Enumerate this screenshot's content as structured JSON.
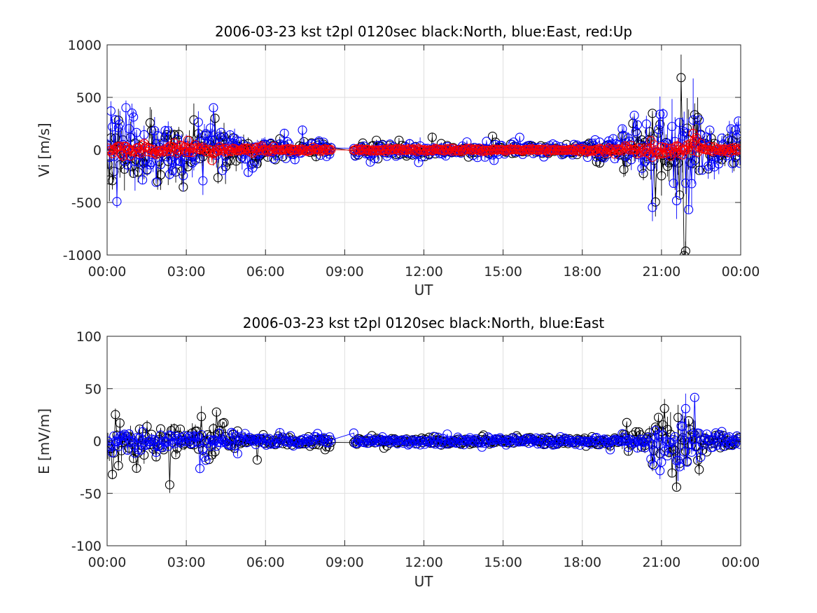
{
  "chart_data": [
    {
      "type": "scatter",
      "title": "2006-03-23 kst t2pl 0120sec black:North, blue:East, red:Up",
      "xlabel": "UT",
      "ylabel": "Vi [m/s]",
      "xlim_hours": [
        0,
        24
      ],
      "ylim": [
        -1000,
        1000
      ],
      "x_ticks": [
        "00:00",
        "03:00",
        "06:00",
        "09:00",
        "12:00",
        "15:00",
        "18:00",
        "21:00",
        "00:00"
      ],
      "y_ticks": [
        "1000",
        "500",
        "0",
        "-500",
        "-1000"
      ],
      "y_tick_values": [
        1000,
        500,
        0,
        -500,
        -1000
      ],
      "grid": true,
      "data_gap_hours": [
        8.5,
        9.3
      ],
      "series": [
        {
          "color": "#000000",
          "marker": "circle",
          "segments": [
            [
              0,
              1.5,
              260
            ],
            [
              1.5,
              3,
              230
            ],
            [
              3,
              4.5,
              200
            ],
            [
              4.5,
              6,
              120
            ],
            [
              6,
              8.5,
              60
            ],
            [
              9.3,
              12,
              55
            ],
            [
              12,
              18,
              45
            ],
            [
              18,
              19.5,
              70
            ],
            [
              19.5,
              20.5,
              180
            ],
            [
              20.5,
              21.5,
              320
            ],
            [
              21.5,
              22.5,
              380
            ],
            [
              22.5,
              24,
              150
            ]
          ]
        },
        {
          "color": "#0000ff",
          "marker": "circle",
          "segments": [
            [
              0,
              1.5,
              300
            ],
            [
              1.5,
              3,
              260
            ],
            [
              3,
              4.5,
              220
            ],
            [
              4.5,
              6,
              140
            ],
            [
              6,
              8.5,
              75
            ],
            [
              9.3,
              12,
              70
            ],
            [
              12,
              18,
              60
            ],
            [
              18,
              19.5,
              85
            ],
            [
              19.5,
              20.5,
              220
            ],
            [
              20.5,
              21.5,
              380
            ],
            [
              21.5,
              22.5,
              400
            ],
            [
              22.5,
              24,
              170
            ]
          ]
        },
        {
          "color": "#ff0000",
          "marker": "circle",
          "segments": [
            [
              0,
              1.5,
              45
            ],
            [
              1.5,
              3,
              40
            ],
            [
              3,
              4.5,
              35
            ],
            [
              4.5,
              6,
              25
            ],
            [
              6,
              8.5,
              15
            ],
            [
              9.3,
              12,
              12
            ],
            [
              12,
              18,
              10
            ],
            [
              18,
              19.5,
              15
            ],
            [
              19.5,
              20.5,
              35
            ],
            [
              20.5,
              21.5,
              60
            ],
            [
              21.5,
              22.5,
              90
            ],
            [
              22.5,
              24,
              25
            ]
          ]
        }
      ]
    },
    {
      "type": "scatter",
      "title": "2006-03-23 kst t2pl 0120sec black:North, blue:East",
      "xlabel": "UT",
      "ylabel": "E [mV/m]",
      "xlim_hours": [
        0,
        24
      ],
      "ylim": [
        -100,
        100
      ],
      "x_ticks": [
        "00:00",
        "03:00",
        "06:00",
        "09:00",
        "12:00",
        "15:00",
        "18:00",
        "21:00",
        "00:00"
      ],
      "y_ticks": [
        "100",
        "50",
        "0",
        "-50",
        "-100"
      ],
      "y_tick_values": [
        100,
        50,
        0,
        -50,
        -100
      ],
      "grid": true,
      "data_gap_hours": [
        8.5,
        9.3
      ],
      "series": [
        {
          "color": "#000000",
          "marker": "circle",
          "segments": [
            [
              0,
              1.5,
              17
            ],
            [
              1.5,
              3,
              15
            ],
            [
              3,
              4.5,
              12
            ],
            [
              4.5,
              6,
              6
            ],
            [
              6,
              8.5,
              4
            ],
            [
              9.3,
              12,
              3
            ],
            [
              12,
              18,
              3
            ],
            [
              18,
              19.5,
              4
            ],
            [
              19.5,
              20.5,
              10
            ],
            [
              20.5,
              21.5,
              22
            ],
            [
              21.5,
              22.5,
              28
            ],
            [
              22.5,
              24,
              8
            ]
          ]
        },
        {
          "color": "#0000ff",
          "marker": "circle",
          "segments": [
            [
              0,
              1.5,
              8
            ],
            [
              1.5,
              3,
              8
            ],
            [
              3,
              4.5,
              9
            ],
            [
              4.5,
              6,
              5
            ],
            [
              6,
              8.5,
              4
            ],
            [
              9.3,
              12,
              3
            ],
            [
              12,
              18,
              3
            ],
            [
              18,
              19.5,
              4
            ],
            [
              19.5,
              20.5,
              8
            ],
            [
              20.5,
              21.5,
              18
            ],
            [
              21.5,
              22.5,
              25
            ],
            [
              22.5,
              24,
              7
            ]
          ]
        }
      ]
    }
  ]
}
